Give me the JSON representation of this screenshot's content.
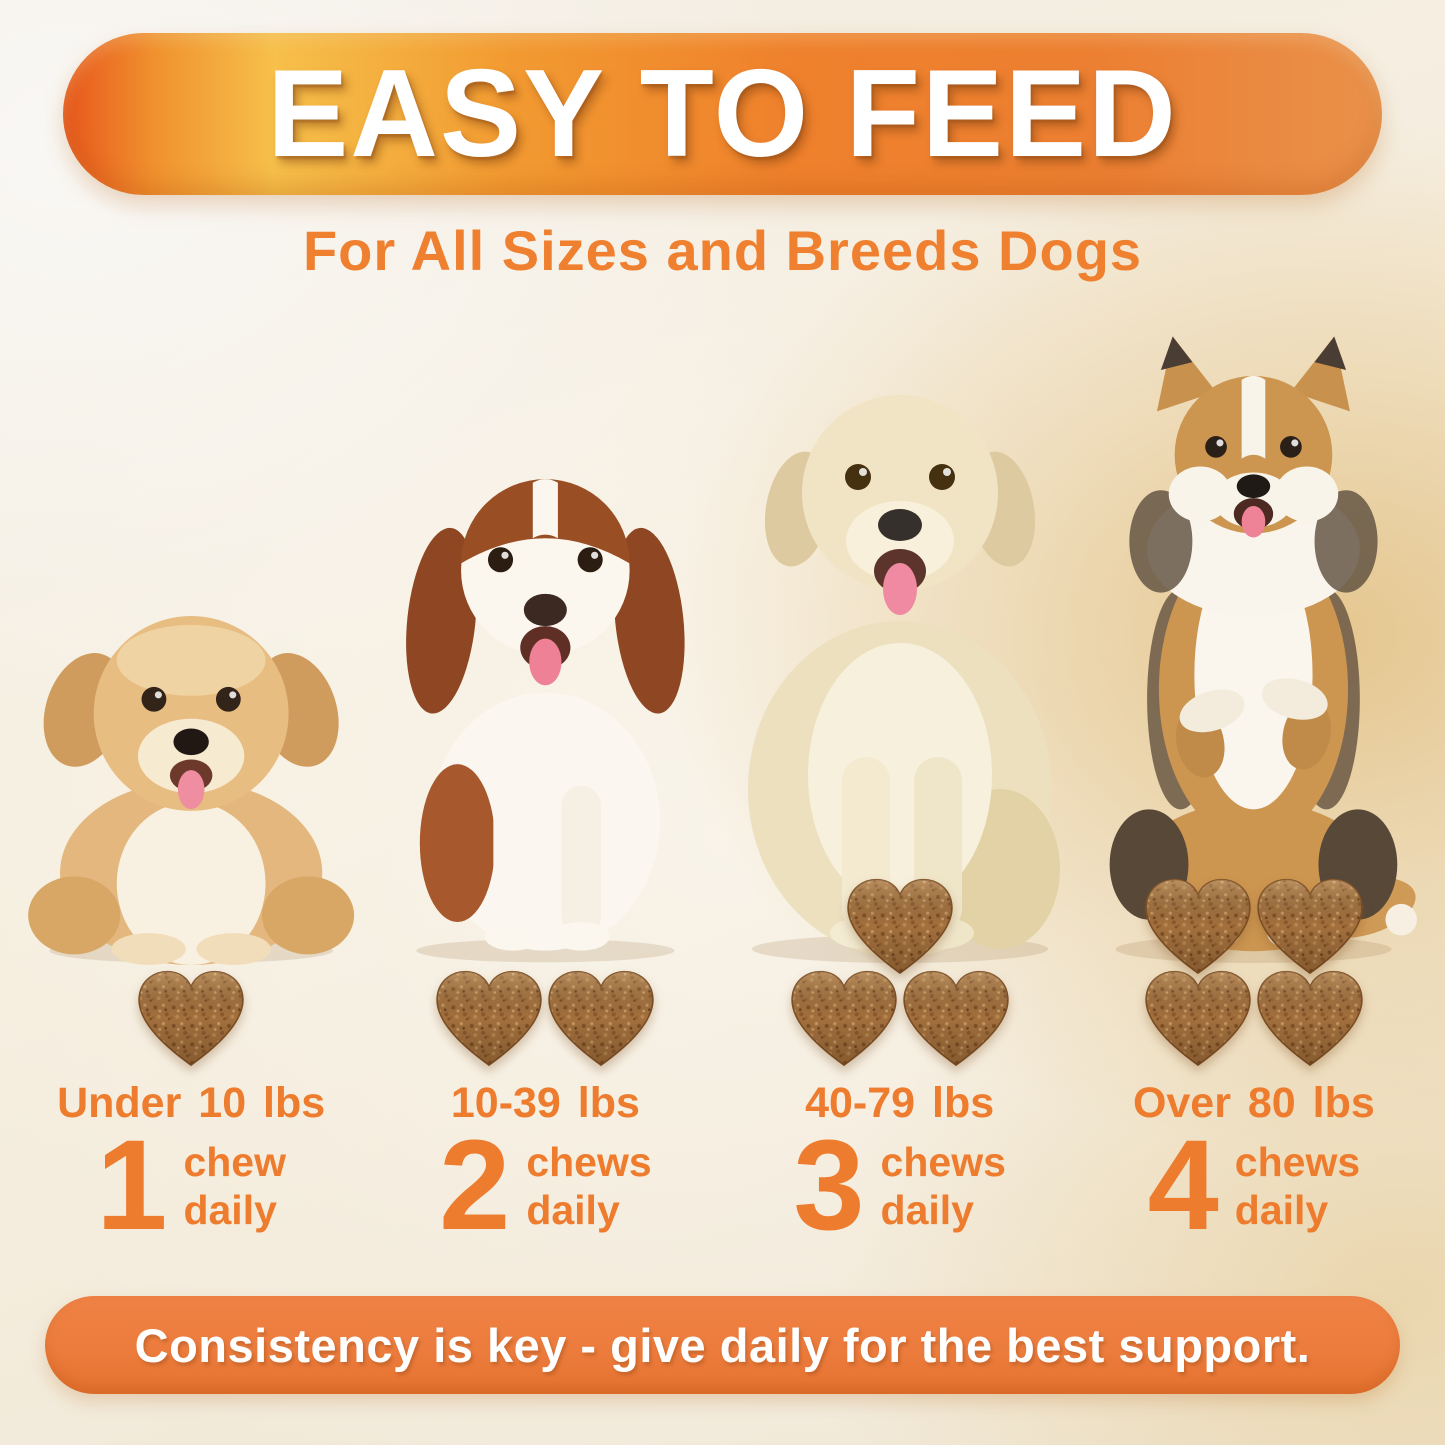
{
  "header": {
    "title": "EASY TO FEED",
    "subtitle": "For All Sizes and Breeds Dogs"
  },
  "columns": [
    {
      "weight_label": "Under 10 lbs",
      "dose_count": "1",
      "dose_unit": "chew",
      "dose_frequency": "daily",
      "chew_count": 1,
      "dog_icon": "small-fluffy-tan-puppy"
    },
    {
      "weight_label": "10-39 lbs",
      "dose_count": "2",
      "dose_unit": "chews",
      "dose_frequency": "daily",
      "chew_count": 2,
      "dog_icon": "spaniel-puppy"
    },
    {
      "weight_label": "40-79 lbs",
      "dose_count": "3",
      "dose_unit": "chews",
      "dose_frequency": "daily",
      "chew_count": 3,
      "dog_icon": "golden-retriever"
    },
    {
      "weight_label": "Over 80 lbs",
      "dose_count": "4",
      "dose_unit": "chews",
      "dose_frequency": "daily",
      "chew_count": 4,
      "dog_icon": "shetland-sheepdog"
    }
  ],
  "footer": {
    "message": "Consistency is key - give daily for the best support."
  },
  "colors": {
    "accent_orange": "#EE7C2E",
    "banner_gradient_left": "#E8571C",
    "banner_gradient_gold": "#F6C04A",
    "banner_gradient_right": "#E9914B",
    "footer_bar": "#EC7C3D",
    "chew_brown": "#A3703D",
    "background_cream": "#F4EDE1",
    "title_white": "#FFFFFF"
  }
}
